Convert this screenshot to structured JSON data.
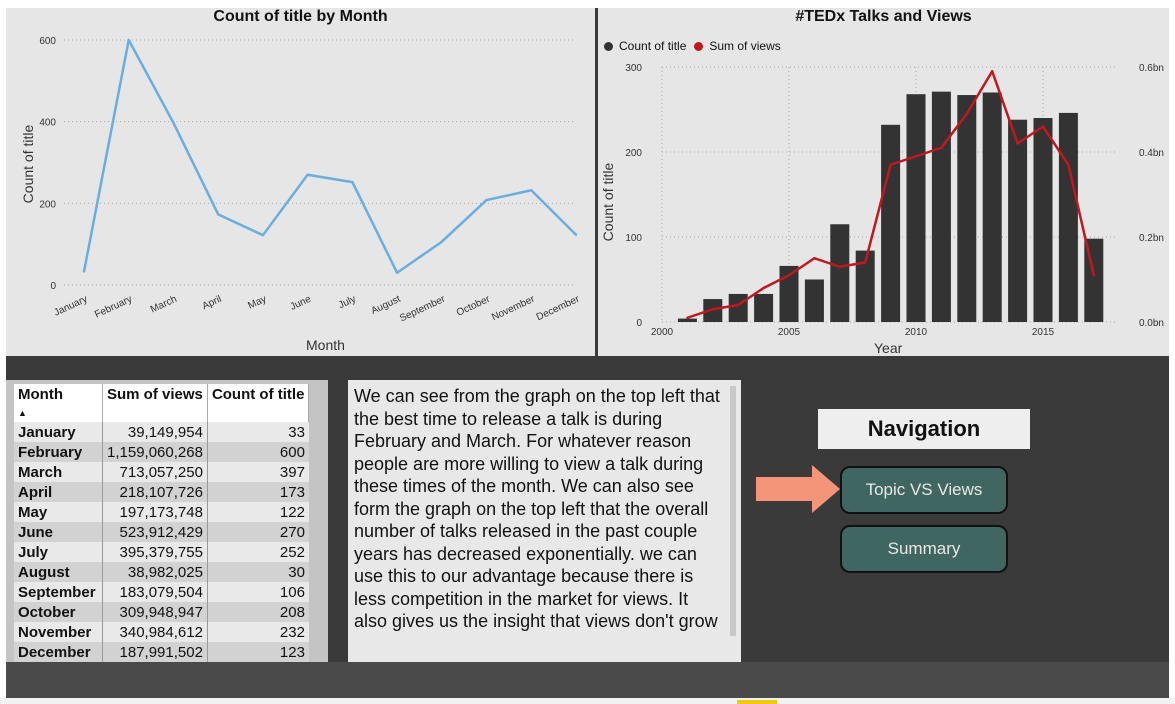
{
  "chart_data": [
    {
      "type": "line",
      "title": "Count of title by Month",
      "xlabel": "Month",
      "ylabel": "Count of title",
      "ylim": [
        0,
        600
      ],
      "yticks": [
        "0",
        "200",
        "400",
        "600"
      ],
      "grid": true,
      "categories": [
        "January",
        "February",
        "March",
        "April",
        "May",
        "June",
        "July",
        "August",
        "September",
        "October",
        "November",
        "December"
      ],
      "values": [
        33,
        600,
        397,
        173,
        122,
        270,
        252,
        30,
        106,
        208,
        232,
        123
      ],
      "color": "#6aaee0"
    },
    {
      "type": "bar",
      "title": "#TEDx Talks and Views",
      "xlabel": "Year",
      "ylabel": "Count of title",
      "ylim": [
        0,
        300
      ],
      "y2lim": [
        0,
        0.6
      ],
      "yticks": [
        "0",
        "100",
        "200",
        "300"
      ],
      "y2ticks": [
        "0.0bn",
        "0.2bn",
        "0.4bn",
        "0.6bn"
      ],
      "xticks": [
        "2000",
        "2005",
        "2010",
        "2015"
      ],
      "legend": [
        "Count of title",
        "Sum of views"
      ],
      "legend_colors": [
        "#333333",
        "#c0181e"
      ],
      "legend_position": "top-left",
      "x": [
        2001,
        2002,
        2003,
        2004,
        2005,
        2006,
        2007,
        2008,
        2009,
        2010,
        2011,
        2012,
        2013,
        2014,
        2015,
        2016,
        2017
      ],
      "series": [
        {
          "name": "Count of title",
          "type": "bar",
          "values": [
            4,
            27,
            33,
            33,
            66,
            50,
            115,
            84,
            232,
            268,
            271,
            267,
            270,
            238,
            240,
            246,
            98
          ],
          "color": "#333333"
        },
        {
          "name": "Sum of views",
          "type": "line",
          "axis": "right",
          "values": [
            0.01,
            0.03,
            0.04,
            0.08,
            0.11,
            0.15,
            0.13,
            0.14,
            0.37,
            0.39,
            0.41,
            0.49,
            0.59,
            0.42,
            0.46,
            0.37,
            0.11
          ],
          "color": "#c0181e"
        }
      ]
    }
  ],
  "table": {
    "headers": [
      "Month",
      "Sum of views",
      "Count of title"
    ],
    "sort_indicator": "▲",
    "rows": [
      [
        "January",
        "39,149,954",
        "33"
      ],
      [
        "February",
        "1,159,060,268",
        "600"
      ],
      [
        "March",
        "713,057,250",
        "397"
      ],
      [
        "April",
        "218,107,726",
        "173"
      ],
      [
        "May",
        "197,173,748",
        "122"
      ],
      [
        "June",
        "523,912,429",
        "270"
      ],
      [
        "July",
        "395,379,755",
        "252"
      ],
      [
        "August",
        "38,982,025",
        "30"
      ],
      [
        "September",
        "183,079,504",
        "106"
      ],
      [
        "October",
        "309,948,947",
        "208"
      ],
      [
        "November",
        "340,984,612",
        "232"
      ],
      [
        "December",
        "187,991,502",
        "123"
      ]
    ]
  },
  "textbox": {
    "text": "We can see from the graph on the top left that the best time to release a talk is during February and March. For whatever reason people are more willing to view a talk during these times of the month. We can also see form the graph on the top left that the overall number of talks released in the past couple years has decreased exponentially. we can use this to our advantage because there is less competition in the market for views. It also gives us the insight that views don't grow"
  },
  "navigation": {
    "title": "Navigation",
    "buttons": [
      "Topic VS Views",
      "Summary"
    ],
    "arrow_icon": "arrow-right-icon",
    "arrow_color": "#f4957a",
    "button_color": "#3f6660"
  }
}
